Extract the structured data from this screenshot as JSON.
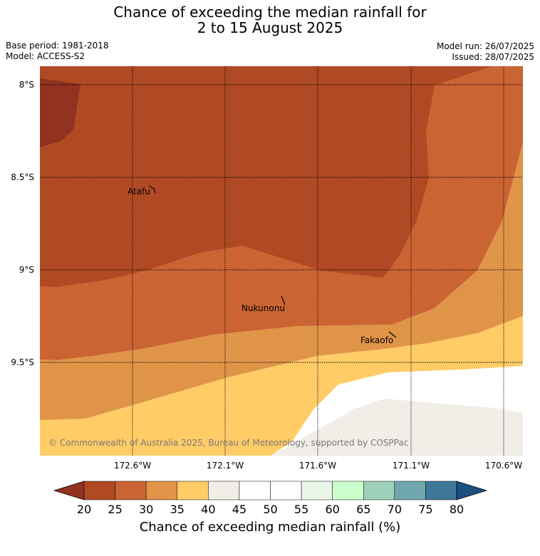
{
  "title": {
    "line1": "Chance of exceeding the median rainfall for",
    "line2": "2 to 15 August 2025"
  },
  "meta": {
    "base_period": "Base period: 1981-2018",
    "model": "Model: ACCESS-S2",
    "model_run": "Model run: 26/07/2025",
    "issued": "Issued: 28/07/2025"
  },
  "map": {
    "lat_labels": [
      "8°S",
      "8.5°S",
      "9°S",
      "9.5°S"
    ],
    "lon_labels": [
      "172.6°W",
      "172.1°W",
      "171.6°W",
      "171.1°W",
      "170.6°W"
    ],
    "places": [
      "Atafu",
      "Nukunonu",
      "Fakaofo"
    ],
    "copyright": "© Commonwealth of Australia 2025, Bureau of Meteorology, supported by COSPPac"
  },
  "colorbar": {
    "ticks": [
      "20",
      "25",
      "30",
      "35",
      "40",
      "45",
      "50",
      "55",
      "60",
      "65",
      "70",
      "75",
      "80"
    ],
    "colors": [
      "#b04a24",
      "#cb6433",
      "#e09448",
      "#ffcc66",
      "#f1ede7",
      "#ffffff",
      "#ffffff",
      "#e9f6e8",
      "#ccffcc",
      "#9dd1b9",
      "#70a7ad",
      "#3d7898"
    ],
    "under_color": "#923221",
    "over_color": "#1b4f80",
    "label": "Chance of exceeding median rainfall (%)"
  }
}
